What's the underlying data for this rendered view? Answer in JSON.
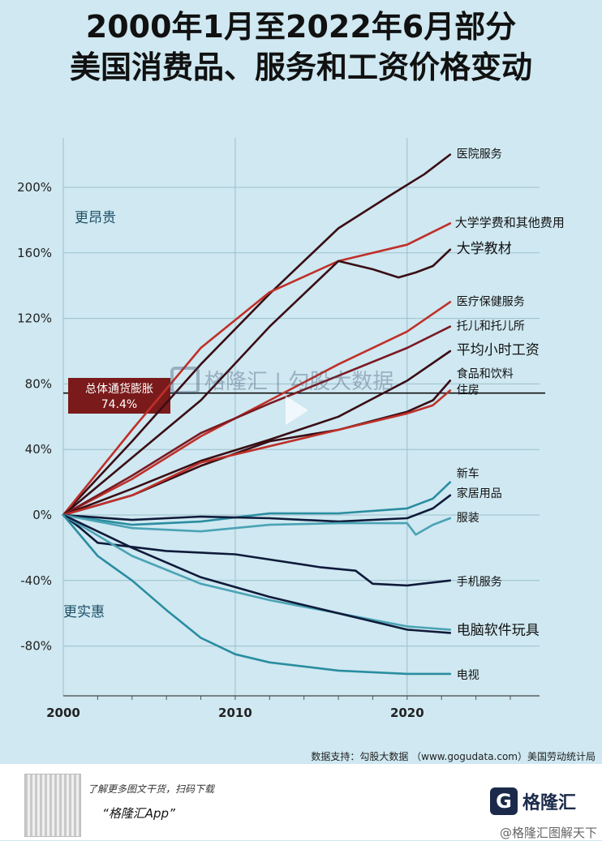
{
  "title_line1": "2000年1月至2022年6月部分",
  "title_line2": "美国消费品、服务和工资价格变动",
  "chart_data": {
    "type": "line",
    "xlim": [
      2000,
      2022.5
    ],
    "ylim": [
      -100,
      230
    ],
    "x_ticks": [
      2000,
      2010,
      2020
    ],
    "y_ticks": [
      200,
      160,
      120,
      80,
      40,
      0,
      -40,
      -80
    ],
    "y_tick_labels": [
      "200%",
      "160%",
      "120%",
      "80%",
      "40%",
      "0%",
      "-40%",
      "-80%"
    ],
    "annotation_top": "更昂贵",
    "annotation_bottom": "更实惠",
    "reference_line": {
      "label": "总体通货膨胀",
      "value_label": "74.4%",
      "value": 74.4
    },
    "series": [
      {
        "name": "医院服务",
        "color": "#3a0d14",
        "x": [
          2000,
          2004,
          2008,
          2012,
          2016,
          2019,
          2021,
          2022.5
        ],
        "y": [
          0,
          45,
          92,
          135,
          175,
          195,
          208,
          220
        ]
      },
      {
        "name": "大学学费和其他费用",
        "color": "#c0302a",
        "x": [
          2000,
          2004,
          2008,
          2012,
          2016,
          2020,
          2022.5
        ],
        "y": [
          0,
          52,
          102,
          136,
          155,
          165,
          178
        ]
      },
      {
        "name": "大学教材",
        "color": "#3a0d14",
        "x": [
          2000,
          2004,
          2008,
          2012,
          2014,
          2016,
          2018,
          2019.5,
          2020.5,
          2021.5,
          2022.5
        ],
        "y": [
          0,
          35,
          70,
          115,
          135,
          155,
          150,
          145,
          148,
          152,
          162
        ]
      },
      {
        "name": "医疗保健服务",
        "color": "#c0302a",
        "x": [
          2000,
          2004,
          2008,
          2012,
          2016,
          2020,
          2022.5
        ],
        "y": [
          0,
          22,
          48,
          70,
          92,
          112,
          130
        ]
      },
      {
        "name": "托儿和托儿所",
        "color": "#7a1a22",
        "x": [
          2000,
          2004,
          2008,
          2012,
          2016,
          2020,
          2022.5
        ],
        "y": [
          0,
          24,
          50,
          68,
          85,
          102,
          115
        ]
      },
      {
        "name": "平均小时工资",
        "color": "#3a0d14",
        "x": [
          2000,
          2004,
          2008,
          2012,
          2016,
          2020,
          2022.5
        ],
        "y": [
          0,
          16,
          33,
          46,
          60,
          82,
          100
        ]
      },
      {
        "name": "食品和饮料",
        "color": "#3a0d14",
        "x": [
          2000,
          2004,
          2008,
          2012,
          2016,
          2020,
          2021.5,
          2022.5
        ],
        "y": [
          0,
          12,
          30,
          45,
          52,
          63,
          70,
          82
        ]
      },
      {
        "name": "住房",
        "color": "#c0302a",
        "x": [
          2000,
          2004,
          2008,
          2012,
          2016,
          2020,
          2021.5,
          2022.5
        ],
        "y": [
          0,
          12,
          32,
          42,
          52,
          62,
          67,
          76
        ]
      },
      {
        "name": "新车",
        "color": "#2a8da0",
        "x": [
          2000,
          2004,
          2008,
          2012,
          2016,
          2020,
          2021.5,
          2022.5
        ],
        "y": [
          0,
          -6,
          -4,
          1,
          1,
          4,
          10,
          20
        ]
      },
      {
        "name": "家居用品",
        "color": "#0f1a3a",
        "x": [
          2000,
          2004,
          2008,
          2012,
          2016,
          2020,
          2021.5,
          2022.5
        ],
        "y": [
          0,
          -3,
          -1,
          -2,
          -4,
          -2,
          4,
          12
        ]
      },
      {
        "name": "服装",
        "color": "#4aa3b5",
        "x": [
          2000,
          2004,
          2008,
          2012,
          2016,
          2020,
          2020.5,
          2021.5,
          2022.5
        ],
        "y": [
          0,
          -8,
          -10,
          -6,
          -5,
          -5,
          -12,
          -6,
          -2
        ]
      },
      {
        "name": "手机服务",
        "color": "#0f1a3a",
        "x": [
          2000,
          2001,
          2002,
          2006,
          2010,
          2015,
          2017,
          2018,
          2020,
          2022.5
        ],
        "y": [
          0,
          -8,
          -17,
          -22,
          -24,
          -32,
          -34,
          -42,
          -43,
          -40
        ]
      },
      {
        "name": "电脑软件玩具",
        "color": "#4aa3b5",
        "x": [
          2000,
          2004,
          2008,
          2012,
          2016,
          2020,
          2022.5
        ],
        "y": [
          0,
          -25,
          -42,
          -52,
          -60,
          -68,
          -70
        ]
      },
      {
        "name": "电脑软件玩具",
        "color": "#0f1a3a",
        "x": [
          2000,
          2004,
          2008,
          2012,
          2016,
          2020,
          2022.5
        ],
        "y": [
          0,
          -20,
          -38,
          -50,
          -60,
          -70,
          -72
        ]
      },
      {
        "name": "电视",
        "color": "#2a8da0",
        "x": [
          2000,
          2002,
          2004,
          2006,
          2008,
          2010,
          2012,
          2016,
          2020,
          2022.5
        ],
        "y": [
          0,
          -25,
          -40,
          -58,
          -75,
          -85,
          -90,
          -95,
          -97,
          -97
        ]
      }
    ]
  },
  "source_text": "数据支持：勾股大数据 （www.gogudata.com）美国劳动统计局",
  "watermark_text": "格隆汇 | 勾股大数据",
  "promo_text": "了解更多图文干货，扫码下载",
  "app_text": "“格隆汇App”",
  "brand_logo_letter": "G",
  "brand_name": "格隆汇",
  "weibo_text": "@格隆汇图解天下"
}
